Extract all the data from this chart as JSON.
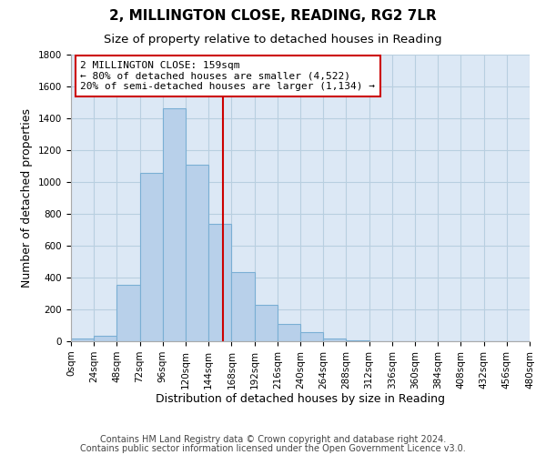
{
  "title": "2, MILLINGTON CLOSE, READING, RG2 7LR",
  "subtitle": "Size of property relative to detached houses in Reading",
  "xlabel": "Distribution of detached houses by size in Reading",
  "ylabel": "Number of detached properties",
  "bin_edges": [
    0,
    24,
    48,
    72,
    96,
    120,
    144,
    168,
    192,
    216,
    240,
    264,
    288,
    312,
    336,
    360,
    384,
    408,
    432,
    456,
    480
  ],
  "bar_heights": [
    15,
    35,
    355,
    1060,
    1465,
    1110,
    740,
    435,
    230,
    110,
    55,
    20,
    5,
    2,
    1,
    0,
    0,
    0,
    0,
    0
  ],
  "bar_color": "#b8d0ea",
  "bar_edge_color": "#7aafd4",
  "vline_x": 159,
  "vline_color": "#cc0000",
  "annotation_text": "2 MILLINGTON CLOSE: 159sqm\n← 80% of detached houses are smaller (4,522)\n20% of semi-detached houses are larger (1,134) →",
  "annotation_box_color": "#ffffff",
  "annotation_box_edge": "#cc0000",
  "ylim": [
    0,
    1800
  ],
  "yticks": [
    0,
    200,
    400,
    600,
    800,
    1000,
    1200,
    1400,
    1600,
    1800
  ],
  "xtick_labels": [
    "0sqm",
    "24sqm",
    "48sqm",
    "72sqm",
    "96sqm",
    "120sqm",
    "144sqm",
    "168sqm",
    "192sqm",
    "216sqm",
    "240sqm",
    "264sqm",
    "288sqm",
    "312sqm",
    "336sqm",
    "360sqm",
    "384sqm",
    "408sqm",
    "432sqm",
    "456sqm",
    "480sqm"
  ],
  "footer_line1": "Contains HM Land Registry data © Crown copyright and database right 2024.",
  "footer_line2": "Contains public sector information licensed under the Open Government Licence v3.0.",
  "bg_color": "#ffffff",
  "plot_bg_color": "#dce8f5",
  "grid_color": "#b8cfe0",
  "title_fontsize": 11,
  "subtitle_fontsize": 9.5,
  "axis_label_fontsize": 9,
  "tick_fontsize": 7.5,
  "footer_fontsize": 7,
  "annotation_fontsize": 8
}
